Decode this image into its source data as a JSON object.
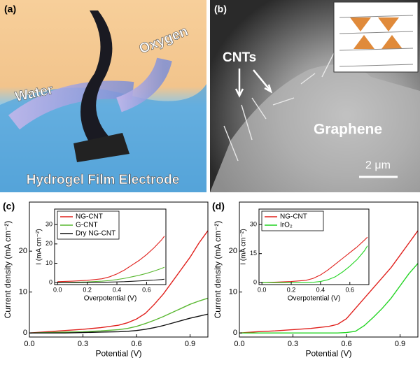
{
  "panels": {
    "a": {
      "label": "(a)",
      "water": "Water",
      "oxygen": "Oxygen",
      "caption": "Hydrogel Film Electrode"
    },
    "b": {
      "label": "(b)",
      "cnts": "CNTs",
      "graphene": "Graphene",
      "scale": "2 μm"
    },
    "c": {
      "label": "(c)"
    },
    "d": {
      "label": "(d)"
    }
  },
  "chart_data": [
    {
      "type": "line",
      "xlabel": "Potential (V)",
      "ylabel": "Current density (mA cm⁻²)",
      "xlim": [
        0,
        1.0
      ],
      "ylim": [
        -1,
        32
      ],
      "xticks": [
        {
          "value": 0,
          "label": "0.0"
        },
        0.3,
        0.6,
        0.9
      ],
      "yticks": [
        0,
        10,
        20
      ],
      "x": [
        0,
        0.1,
        0.2,
        0.3,
        0.4,
        0.5,
        0.55,
        0.6,
        0.65,
        0.7,
        0.75,
        0.8,
        0.85,
        0.9,
        0.95,
        1.0
      ],
      "series": [
        {
          "color": "#e0201c",
          "values": [
            0,
            0.3,
            0.6,
            0.9,
            1.3,
            1.9,
            2.5,
            3.4,
            4.8,
            7,
            9.5,
            12.5,
            15.5,
            18.5,
            22,
            25
          ]
        },
        {
          "color": "#5ab832",
          "values": [
            0,
            0.1,
            0.2,
            0.3,
            0.5,
            0.8,
            1.1,
            1.6,
            2.3,
            3.1,
            4,
            5,
            6,
            7,
            7.8,
            8.5
          ]
        },
        {
          "color": "#111111",
          "values": [
            0,
            0,
            0,
            0.1,
            0.2,
            0.3,
            0.4,
            0.6,
            0.9,
            1.3,
            1.8,
            2.4,
            3,
            3.6,
            4.1,
            4.6
          ]
        }
      ]
    },
    {
      "type": "line",
      "xlabel": "Overpotential (V)",
      "ylabel": "I (mA cm⁻²)",
      "xlim": [
        -0.02,
        0.73
      ],
      "ylim": [
        -1,
        38
      ],
      "xticks": [
        {
          "value": 0,
          "label": "0.0"
        },
        0.2,
        0.4,
        0.6
      ],
      "yticks": [
        0,
        10,
        20,
        30
      ],
      "x": [
        0,
        0.1,
        0.2,
        0.3,
        0.35,
        0.4,
        0.45,
        0.5,
        0.55,
        0.6,
        0.65,
        0.7,
        0.72
      ],
      "series": [
        {
          "name": "NG-CNT",
          "color": "#e0201c",
          "values": [
            0.5,
            0.8,
            1.2,
            2,
            3,
            4.5,
            6.5,
            9,
            11.5,
            14.5,
            18,
            22,
            24
          ]
        },
        {
          "name": "G-CNT",
          "color": "#5ab832",
          "values": [
            0,
            0.2,
            0.4,
            0.8,
            1.1,
            1.6,
            2.2,
            3,
            3.8,
            4.8,
            6,
            7.3,
            8
          ]
        },
        {
          "name": "Dry NG-CNT",
          "color": "#111111",
          "values": [
            0,
            0,
            0.1,
            0.2,
            0.3,
            0.4,
            0.5,
            0.7,
            0.9,
            1.1,
            1.3,
            1.6,
            1.8
          ]
        }
      ]
    },
    {
      "type": "line",
      "xlabel": "Potential (V)",
      "ylabel": "Current density (mA cm⁻²)",
      "xlim": [
        0,
        1.0
      ],
      "ylim": [
        -1,
        32
      ],
      "xticks": [
        {
          "value": 0,
          "label": "0.0"
        },
        0.3,
        0.6,
        0.9
      ],
      "yticks": [
        0,
        10,
        20
      ],
      "x": [
        0,
        0.1,
        0.2,
        0.3,
        0.4,
        0.5,
        0.55,
        0.6,
        0.65,
        0.7,
        0.75,
        0.8,
        0.85,
        0.9,
        0.95,
        1.0
      ],
      "series": [
        {
          "color": "#e0201c",
          "values": [
            0,
            0.3,
            0.5,
            0.8,
            1.1,
            1.6,
            2.1,
            3.5,
            6,
            8.5,
            11,
            13.5,
            16,
            19,
            22,
            25
          ]
        },
        {
          "color": "#22d422",
          "values": [
            0,
            0,
            0,
            0,
            0,
            0,
            0,
            0.1,
            0.4,
            1.8,
            3.8,
            6,
            8.5,
            11.5,
            14.5,
            17
          ]
        }
      ]
    },
    {
      "type": "line",
      "xlabel": "Overpotential (V)",
      "ylabel": "I (mA cm⁻²)",
      "xlim": [
        -0.02,
        0.73
      ],
      "ylim": [
        -1,
        38
      ],
      "xticks": [
        {
          "value": 0,
          "label": "0.0"
        },
        0.2,
        0.4,
        0.6
      ],
      "yticks": [
        0,
        15,
        30
      ],
      "x": [
        0,
        0.1,
        0.2,
        0.3,
        0.35,
        0.4,
        0.45,
        0.5,
        0.55,
        0.6,
        0.65,
        0.7,
        0.72
      ],
      "series": [
        {
          "name": "NG-CNT",
          "color": "#e0201c",
          "values": [
            0,
            0.3,
            0.6,
            1.2,
            2.2,
            4,
            6.5,
            9.5,
            12.5,
            15.5,
            18.5,
            22,
            23.5
          ]
        },
        {
          "name": "IrO₂",
          "color": "#22d422",
          "values": [
            0,
            0,
            0,
            0,
            0.2,
            0.6,
            1.5,
            3,
            5.5,
            8.5,
            12,
            16.5,
            19
          ]
        }
      ]
    }
  ]
}
